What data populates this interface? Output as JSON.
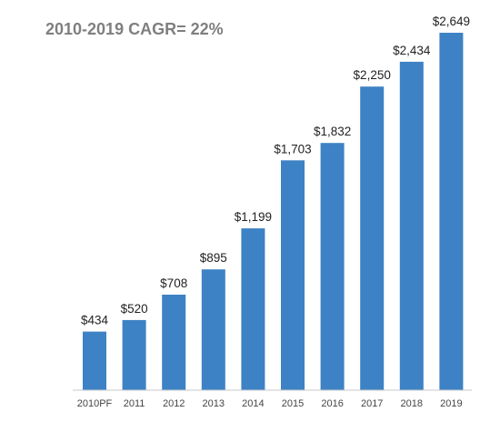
{
  "chart_data": {
    "type": "bar",
    "title": "2010-2019 CAGR= 22%",
    "xlabel": "",
    "ylabel": "",
    "categories": [
      "2010PF",
      "2011",
      "2012",
      "2013",
      "2014",
      "2015",
      "2016",
      "2017",
      "2018",
      "2019"
    ],
    "values": [
      434,
      520,
      708,
      895,
      1199,
      1703,
      1832,
      2250,
      2434,
      2649
    ],
    "data_labels": [
      "$434",
      "$520",
      "$708",
      "$895",
      "$1,199",
      "$1,703",
      "$1,832",
      "$2,250",
      "$2,434",
      "$2,649"
    ],
    "ylim": [
      0,
      2649
    ],
    "grid": false,
    "legend": "none",
    "colors": {
      "bar": "#3d82c4",
      "title": "#7f7f7f",
      "axis": "#c8c8c8",
      "label": "#222222",
      "tick": "#444444"
    }
  }
}
